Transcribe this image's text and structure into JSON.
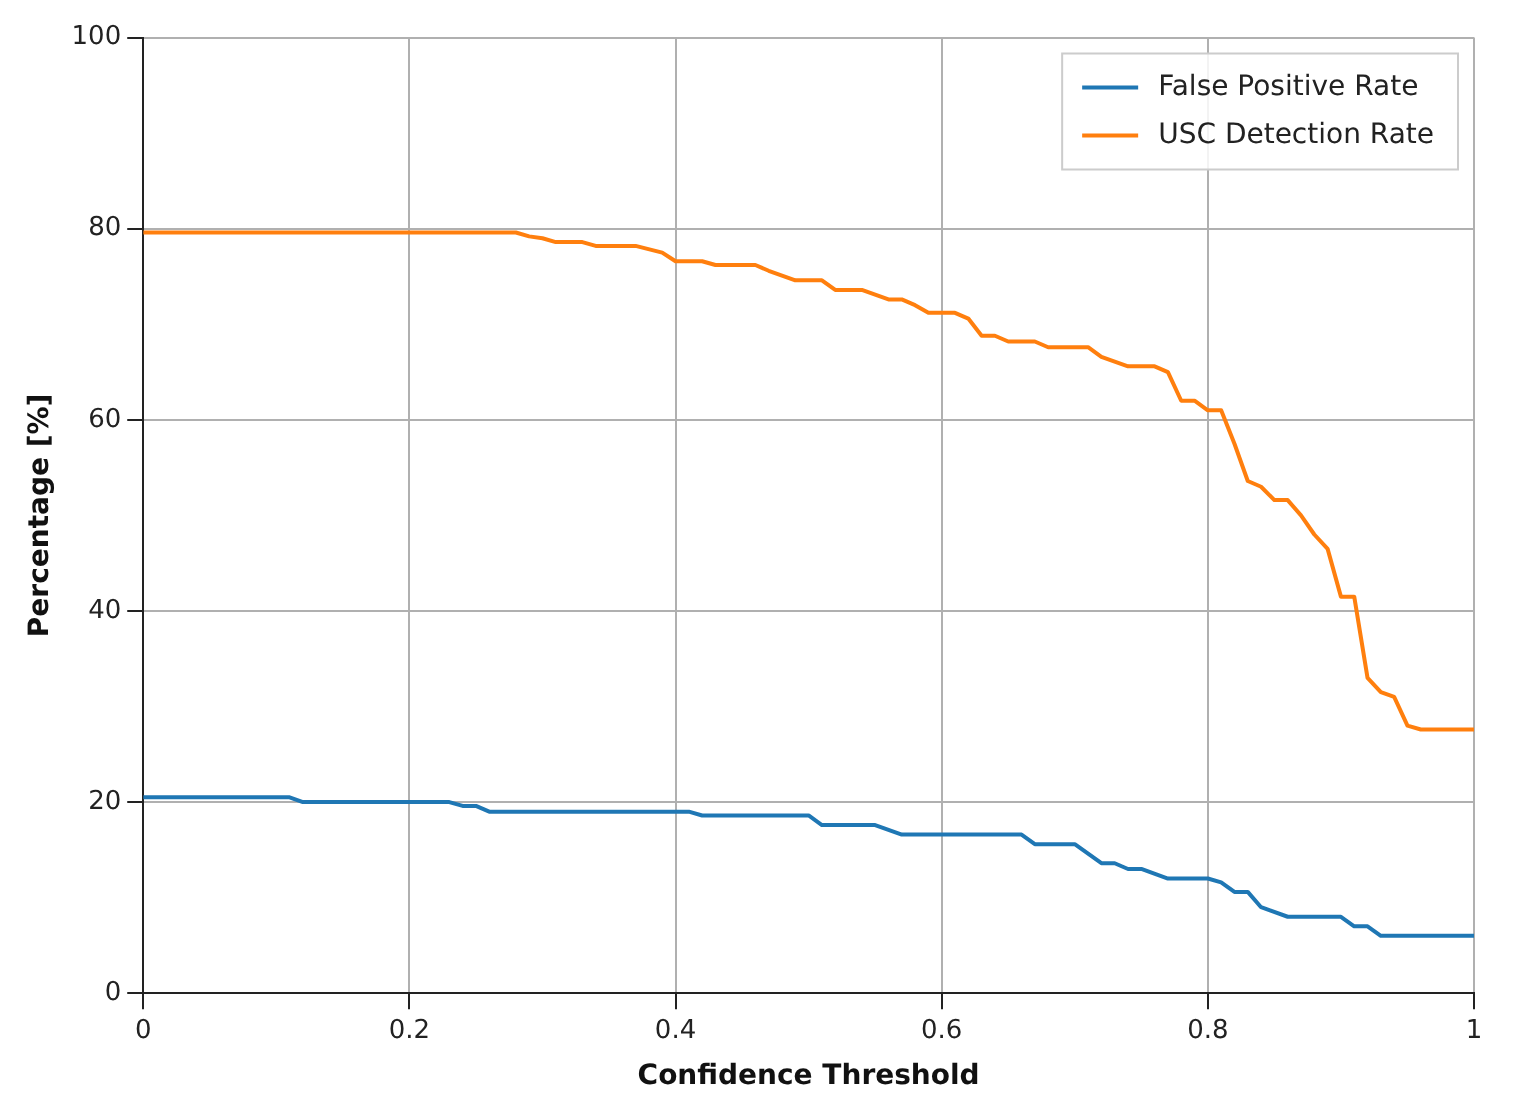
{
  "chart_data": {
    "type": "line",
    "xlabel": "Confidence Threshold",
    "ylabel": "Percentage [%]",
    "xlim": [
      0,
      1
    ],
    "xticks": [
      0,
      0.2,
      0.4,
      0.6,
      0.8,
      1
    ],
    "ylim": [
      0,
      100
    ],
    "yticks": [
      0,
      20,
      40,
      60,
      80,
      100
    ],
    "grid": true,
    "legend": "top right",
    "marker": "none",
    "line_style": "solid",
    "series": [
      {
        "name": "False Positive Rate",
        "color": "#1f77b4",
        "x": [
          0,
          0.11,
          0.12,
          0.23,
          0.24,
          0.25,
          0.26,
          0.41,
          0.42,
          0.5,
          0.51,
          0.55,
          0.57,
          0.66,
          0.67,
          0.7,
          0.72,
          0.73,
          0.74,
          0.75,
          0.77,
          0.8,
          0.81,
          0.82,
          0.83,
          0.84,
          0.86,
          0.9,
          0.91,
          0.92,
          0.93,
          1
        ],
        "values": [
          20.5,
          20.5,
          20,
          20,
          19.6,
          19.6,
          19,
          19,
          18.6,
          18.6,
          17.6,
          17.6,
          16.6,
          16.6,
          15.6,
          15.6,
          13.6,
          13.6,
          13,
          13,
          12,
          12,
          11.6,
          10.6,
          10.6,
          9,
          8,
          8,
          7,
          7,
          6,
          6
        ]
      },
      {
        "name": "USC Detection Rate",
        "color": "#ff7f0e",
        "x": [
          0,
          0.28,
          0.29,
          0.3,
          0.31,
          0.33,
          0.34,
          0.37,
          0.39,
          0.4,
          0.42,
          0.43,
          0.46,
          0.47,
          0.49,
          0.51,
          0.52,
          0.54,
          0.56,
          0.57,
          0.58,
          0.59,
          0.61,
          0.62,
          0.63,
          0.64,
          0.65,
          0.67,
          0.68,
          0.71,
          0.72,
          0.74,
          0.76,
          0.77,
          0.78,
          0.79,
          0.8,
          0.81,
          0.82,
          0.83,
          0.84,
          0.85,
          0.86,
          0.87,
          0.88,
          0.89,
          0.9,
          0.91,
          0.92,
          0.93,
          0.94,
          0.95,
          0.96,
          1
        ],
        "values": [
          79.6,
          79.6,
          79.2,
          79,
          78.6,
          78.6,
          78.2,
          78.2,
          77.5,
          76.6,
          76.6,
          76.2,
          76.2,
          75.6,
          74.6,
          74.6,
          73.6,
          73.6,
          72.6,
          72.6,
          72,
          71.2,
          71.2,
          70.6,
          68.8,
          68.8,
          68.2,
          68.2,
          67.6,
          67.6,
          66.6,
          65.6,
          65.6,
          65,
          62,
          62,
          61,
          61,
          57.5,
          53.6,
          53,
          51.6,
          51.6,
          50,
          48,
          46.5,
          41.5,
          41.5,
          33,
          31.5,
          31,
          28,
          27.6,
          27.6
        ]
      }
    ]
  }
}
